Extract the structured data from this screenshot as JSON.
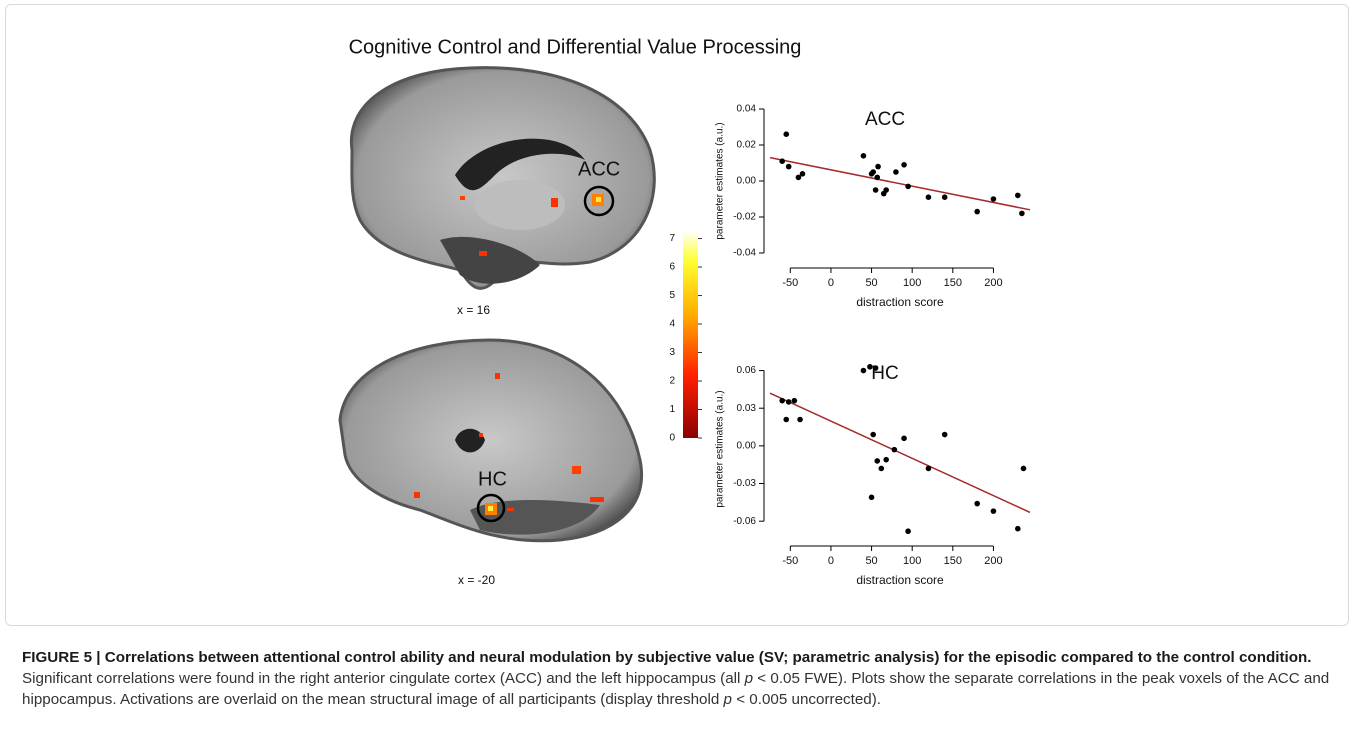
{
  "title": "Cognitive Control and Differential Value Processing",
  "brains": [
    {
      "label": "ACC",
      "coord": "x = 16"
    },
    {
      "label": "HC",
      "coord": "x = -20"
    }
  ],
  "colorbar": {
    "lim": [
      0,
      7.3
    ],
    "ticks": [
      0,
      1,
      2,
      3,
      4,
      5,
      6,
      7
    ]
  },
  "chart_data": [
    {
      "type": "scatter",
      "title": "ACC",
      "x_label": "distraction score",
      "y_label": "parameter estimates (a.u.)",
      "x": [
        -60,
        -55,
        -52,
        -40,
        -35,
        40,
        50,
        52,
        55,
        57,
        58,
        65,
        68,
        80,
        90,
        95,
        120,
        140,
        180,
        200,
        230,
        235
      ],
      "values": [
        0.011,
        0.026,
        0.008,
        0.002,
        0.004,
        0.014,
        0.004,
        0.005,
        -0.005,
        0.002,
        0.008,
        -0.007,
        -0.005,
        0.005,
        0.009,
        -0.003,
        -0.009,
        -0.009,
        -0.017,
        -0.01,
        -0.008,
        -0.018
      ],
      "color": "#000000",
      "fit": {
        "x": [
          -75,
          245
        ],
        "y": [
          0.013,
          -0.016
        ],
        "color": "#a52a2a"
      },
      "xlim": [
        -75,
        245
      ],
      "ylim": [
        -0.045,
        0.045
      ],
      "xticks": [
        -50,
        0,
        50,
        100,
        150,
        200
      ],
      "yticks": [
        -0.04,
        -0.02,
        {
          "value": 0,
          "label": "0.00"
        },
        0.02,
        0.04
      ]
    },
    {
      "type": "scatter",
      "title": "HC",
      "x_label": "distraction score",
      "y_label": "parameter estimates (a.u.)",
      "x": [
        -60,
        -55,
        -52,
        -45,
        -38,
        40,
        48,
        55,
        50,
        52,
        57,
        62,
        68,
        78,
        90,
        95,
        120,
        140,
        180,
        200,
        230,
        237
      ],
      "values": [
        0.036,
        0.021,
        0.035,
        0.036,
        0.021,
        0.06,
        0.063,
        0.062,
        -0.041,
        0.009,
        -0.012,
        -0.018,
        -0.011,
        -0.003,
        0.006,
        -0.068,
        -0.018,
        0.009,
        -0.046,
        -0.052,
        -0.066,
        -0.018
      ],
      "color": "#000000",
      "fit": {
        "x": [
          -75,
          245
        ],
        "y": [
          0.042,
          -0.053
        ],
        "color": "#a52a2a"
      },
      "xlim": [
        -75,
        245
      ],
      "ylim": [
        -0.075,
        0.07
      ],
      "xticks": [
        -50,
        0,
        50,
        100,
        150,
        200
      ],
      "yticks": [
        -0.06,
        -0.03,
        {
          "value": 0,
          "label": "0.00"
        },
        0.03,
        0.06
      ]
    }
  ],
  "caption": {
    "heading": "FIGURE 5 | Correlations between attentional control ability and neural modulation by subjective value (SV; parametric analysis) for the episodic compared to the control condition.",
    "body": [
      " Significant correlations were found in the right anterior cingulate cortex (ACC) and the left hippocampus (all ",
      "p",
      " < 0.05 FWE). Plots show the separate correlations in the peak voxels of the ACC and hippocampus. Activations are overlaid on the mean structural image of all participants (display threshold ",
      "p",
      " < 0.005 uncorrected)."
    ]
  }
}
